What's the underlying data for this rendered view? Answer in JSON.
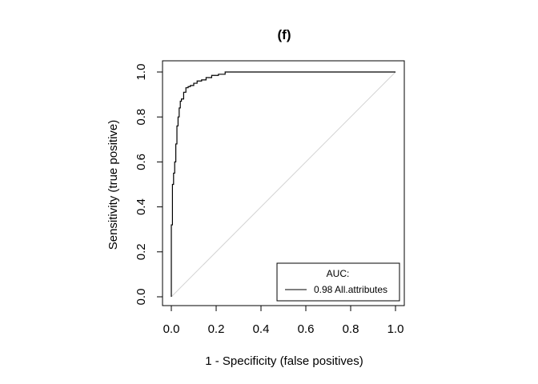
{
  "chart_data": {
    "type": "line",
    "title": "(f)",
    "xlabel": "1 - Specificity (false positives)",
    "ylabel": "Sensitivity (true positive)",
    "xlim": [
      0,
      1
    ],
    "ylim": [
      0,
      1
    ],
    "x_ticks": [
      "0.0",
      "0.2",
      "0.4",
      "0.6",
      "0.8",
      "1.0"
    ],
    "y_ticks": [
      "0.0",
      "0.2",
      "0.4",
      "0.6",
      "0.8",
      "1.0"
    ],
    "grid": false,
    "diagonal_reference": {
      "from": [
        0,
        0
      ],
      "to": [
        1,
        1
      ],
      "color": "#d3d3d3"
    },
    "legend": {
      "title": "AUC:",
      "position": "bottom-right",
      "entries": [
        {
          "label": "0.98 All.attributes",
          "color": "#000000"
        }
      ]
    },
    "series": [
      {
        "name": "0.98 All.attributes",
        "color": "#000000",
        "x": [
          0.0,
          0.0,
          0.005,
          0.005,
          0.01,
          0.01,
          0.015,
          0.015,
          0.02,
          0.02,
          0.025,
          0.025,
          0.03,
          0.03,
          0.035,
          0.035,
          0.04,
          0.04,
          0.045,
          0.045,
          0.055,
          0.055,
          0.065,
          0.065,
          0.075,
          0.075,
          0.085,
          0.085,
          0.1,
          0.1,
          0.115,
          0.115,
          0.135,
          0.135,
          0.155,
          0.155,
          0.18,
          0.18,
          0.21,
          0.21,
          0.24,
          0.24,
          1.0
        ],
        "y": [
          0.0,
          0.32,
          0.32,
          0.5,
          0.5,
          0.55,
          0.55,
          0.6,
          0.6,
          0.68,
          0.68,
          0.76,
          0.76,
          0.8,
          0.8,
          0.84,
          0.84,
          0.87,
          0.87,
          0.88,
          0.88,
          0.91,
          0.91,
          0.93,
          0.93,
          0.935,
          0.935,
          0.94,
          0.94,
          0.95,
          0.95,
          0.96,
          0.96,
          0.965,
          0.965,
          0.975,
          0.975,
          0.985,
          0.985,
          0.99,
          0.99,
          1.0,
          1.0
        ]
      }
    ]
  }
}
